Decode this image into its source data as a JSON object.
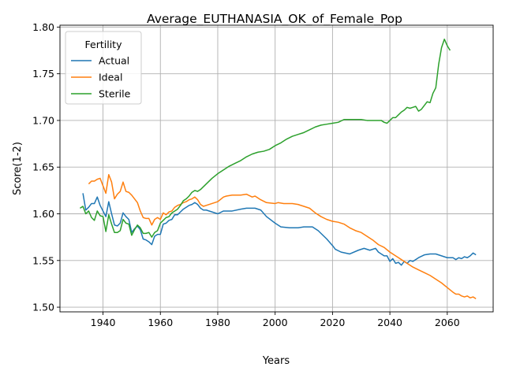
{
  "chart_data": {
    "type": "line",
    "title": "Average_EUTHANASIA_OK_of_Female_Pop",
    "xlabel": "Years",
    "ylabel": "Score(1-2)",
    "xlim": [
      1925,
      2076
    ],
    "ylim": [
      1.495,
      1.802
    ],
    "xticks": [
      1940,
      1960,
      1980,
      2000,
      2020,
      2040,
      2060
    ],
    "yticks": [
      1.5,
      1.55,
      1.6,
      1.65,
      1.7,
      1.75,
      1.8
    ],
    "grid": true,
    "legend": {
      "title": "Fertility",
      "placement": "top-left"
    },
    "series": [
      {
        "name": "Actual",
        "color": "#1f77b4",
        "points": [
          [
            1933,
            1.622
          ],
          [
            1934,
            1.604
          ],
          [
            1935,
            1.607
          ],
          [
            1936,
            1.611
          ],
          [
            1937,
            1.611
          ],
          [
            1938,
            1.618
          ],
          [
            1939,
            1.609
          ],
          [
            1940,
            1.603
          ],
          [
            1941,
            1.597
          ],
          [
            1942,
            1.613
          ],
          [
            1943,
            1.6
          ],
          [
            1944,
            1.588
          ],
          [
            1945,
            1.587
          ],
          [
            1946,
            1.59
          ],
          [
            1947,
            1.601
          ],
          [
            1948,
            1.597
          ],
          [
            1949,
            1.594
          ],
          [
            1950,
            1.58
          ],
          [
            1951,
            1.584
          ],
          [
            1952,
            1.587
          ],
          [
            1953,
            1.583
          ],
          [
            1954,
            1.573
          ],
          [
            1955,
            1.572
          ],
          [
            1956,
            1.57
          ],
          [
            1957,
            1.567
          ],
          [
            1958,
            1.576
          ],
          [
            1959,
            1.578
          ],
          [
            1960,
            1.578
          ],
          [
            1961,
            1.589
          ],
          [
            1962,
            1.59
          ],
          [
            1963,
            1.593
          ],
          [
            1964,
            1.594
          ],
          [
            1965,
            1.599
          ],
          [
            1966,
            1.599
          ],
          [
            1967,
            1.602
          ],
          [
            1968,
            1.605
          ],
          [
            1969,
            1.607
          ],
          [
            1970,
            1.609
          ],
          [
            1971,
            1.61
          ],
          [
            1972,
            1.612
          ],
          [
            1973,
            1.61
          ],
          [
            1974,
            1.606
          ],
          [
            1975,
            1.604
          ],
          [
            1976,
            1.604
          ],
          [
            1978,
            1.602
          ],
          [
            1980,
            1.6
          ],
          [
            1982,
            1.603
          ],
          [
            1985,
            1.603
          ],
          [
            1988,
            1.605
          ],
          [
            1990,
            1.606
          ],
          [
            1993,
            1.606
          ],
          [
            1995,
            1.604
          ],
          [
            1997,
            1.597
          ],
          [
            2000,
            1.59
          ],
          [
            2002,
            1.586
          ],
          [
            2005,
            1.585
          ],
          [
            2008,
            1.585
          ],
          [
            2010,
            1.586
          ],
          [
            2013,
            1.586
          ],
          [
            2015,
            1.582
          ],
          [
            2018,
            1.573
          ],
          [
            2020,
            1.566
          ],
          [
            2021,
            1.562
          ],
          [
            2023,
            1.559
          ],
          [
            2026,
            1.557
          ],
          [
            2029,
            1.561
          ],
          [
            2031,
            1.563
          ],
          [
            2033,
            1.561
          ],
          [
            2035,
            1.563
          ],
          [
            2036,
            1.559
          ],
          [
            2037,
            1.557
          ],
          [
            2038,
            1.555
          ],
          [
            2039,
            1.555
          ],
          [
            2040,
            1.549
          ],
          [
            2041,
            1.552
          ],
          [
            2042,
            1.547
          ],
          [
            2043,
            1.548
          ],
          [
            2044,
            1.545
          ],
          [
            2045,
            1.549
          ],
          [
            2046,
            1.547
          ],
          [
            2047,
            1.55
          ],
          [
            2048,
            1.549
          ],
          [
            2049,
            1.551
          ],
          [
            2050,
            1.553
          ],
          [
            2052,
            1.556
          ],
          [
            2054,
            1.557
          ],
          [
            2056,
            1.557
          ],
          [
            2058,
            1.555
          ],
          [
            2060,
            1.553
          ],
          [
            2062,
            1.553
          ],
          [
            2063,
            1.551
          ],
          [
            2064,
            1.553
          ],
          [
            2065,
            1.552
          ],
          [
            2066,
            1.554
          ],
          [
            2067,
            1.553
          ],
          [
            2068,
            1.555
          ],
          [
            2069,
            1.558
          ],
          [
            2070,
            1.556
          ]
        ]
      },
      {
        "name": "Ideal",
        "color": "#ff7f0e",
        "points": [
          [
            1935,
            1.632
          ],
          [
            1936,
            1.635
          ],
          [
            1937,
            1.635
          ],
          [
            1938,
            1.637
          ],
          [
            1939,
            1.638
          ],
          [
            1940,
            1.63
          ],
          [
            1941,
            1.622
          ],
          [
            1942,
            1.642
          ],
          [
            1943,
            1.634
          ],
          [
            1944,
            1.616
          ],
          [
            1945,
            1.621
          ],
          [
            1946,
            1.624
          ],
          [
            1947,
            1.634
          ],
          [
            1948,
            1.624
          ],
          [
            1949,
            1.623
          ],
          [
            1950,
            1.62
          ],
          [
            1951,
            1.616
          ],
          [
            1952,
            1.612
          ],
          [
            1953,
            1.603
          ],
          [
            1954,
            1.596
          ],
          [
            1955,
            1.595
          ],
          [
            1956,
            1.595
          ],
          [
            1957,
            1.588
          ],
          [
            1958,
            1.594
          ],
          [
            1959,
            1.596
          ],
          [
            1960,
            1.594
          ],
          [
            1961,
            1.601
          ],
          [
            1962,
            1.599
          ],
          [
            1963,
            1.602
          ],
          [
            1964,
            1.603
          ],
          [
            1965,
            1.607
          ],
          [
            1966,
            1.609
          ],
          [
            1967,
            1.61
          ],
          [
            1968,
            1.612
          ],
          [
            1969,
            1.613
          ],
          [
            1970,
            1.615
          ],
          [
            1971,
            1.616
          ],
          [
            1972,
            1.618
          ],
          [
            1973,
            1.615
          ],
          [
            1974,
            1.61
          ],
          [
            1975,
            1.608
          ],
          [
            1976,
            1.609
          ],
          [
            1978,
            1.611
          ],
          [
            1980,
            1.613
          ],
          [
            1982,
            1.618
          ],
          [
            1983,
            1.619
          ],
          [
            1985,
            1.62
          ],
          [
            1988,
            1.62
          ],
          [
            1990,
            1.621
          ],
          [
            1992,
            1.618
          ],
          [
            1993,
            1.619
          ],
          [
            1995,
            1.615
          ],
          [
            1997,
            1.612
          ],
          [
            2000,
            1.611
          ],
          [
            2001,
            1.612
          ],
          [
            2003,
            1.611
          ],
          [
            2006,
            1.611
          ],
          [
            2008,
            1.61
          ],
          [
            2010,
            1.608
          ],
          [
            2012,
            1.606
          ],
          [
            2014,
            1.601
          ],
          [
            2016,
            1.597
          ],
          [
            2018,
            1.594
          ],
          [
            2020,
            1.592
          ],
          [
            2022,
            1.591
          ],
          [
            2024,
            1.589
          ],
          [
            2026,
            1.585
          ],
          [
            2028,
            1.582
          ],
          [
            2030,
            1.58
          ],
          [
            2032,
            1.576
          ],
          [
            2034,
            1.572
          ],
          [
            2036,
            1.567
          ],
          [
            2038,
            1.564
          ],
          [
            2040,
            1.559
          ],
          [
            2042,
            1.555
          ],
          [
            2044,
            1.551
          ],
          [
            2046,
            1.547
          ],
          [
            2048,
            1.543
          ],
          [
            2050,
            1.54
          ],
          [
            2052,
            1.537
          ],
          [
            2054,
            1.534
          ],
          [
            2056,
            1.53
          ],
          [
            2058,
            1.526
          ],
          [
            2060,
            1.521
          ],
          [
            2062,
            1.516
          ],
          [
            2063,
            1.514
          ],
          [
            2064,
            1.514
          ],
          [
            2065,
            1.512
          ],
          [
            2066,
            1.511
          ],
          [
            2067,
            1.512
          ],
          [
            2068,
            1.51
          ],
          [
            2069,
            1.511
          ],
          [
            2070,
            1.509
          ]
        ]
      },
      {
        "name": "Sterile",
        "color": "#2ca02c",
        "points": [
          [
            1932,
            1.606
          ],
          [
            1933,
            1.608
          ],
          [
            1934,
            1.6
          ],
          [
            1935,
            1.603
          ],
          [
            1936,
            1.596
          ],
          [
            1937,
            1.593
          ],
          [
            1938,
            1.603
          ],
          [
            1939,
            1.598
          ],
          [
            1940,
            1.597
          ],
          [
            1941,
            1.581
          ],
          [
            1942,
            1.599
          ],
          [
            1943,
            1.589
          ],
          [
            1944,
            1.58
          ],
          [
            1945,
            1.58
          ],
          [
            1946,
            1.582
          ],
          [
            1947,
            1.594
          ],
          [
            1948,
            1.59
          ],
          [
            1949,
            1.589
          ],
          [
            1950,
            1.577
          ],
          [
            1951,
            1.583
          ],
          [
            1952,
            1.588
          ],
          [
            1953,
            1.585
          ],
          [
            1954,
            1.579
          ],
          [
            1955,
            1.579
          ],
          [
            1956,
            1.58
          ],
          [
            1957,
            1.575
          ],
          [
            1958,
            1.58
          ],
          [
            1959,
            1.582
          ],
          [
            1960,
            1.59
          ],
          [
            1961,
            1.593
          ],
          [
            1962,
            1.596
          ],
          [
            1963,
            1.597
          ],
          [
            1964,
            1.601
          ],
          [
            1965,
            1.603
          ],
          [
            1966,
            1.605
          ],
          [
            1967,
            1.609
          ],
          [
            1968,
            1.614
          ],
          [
            1969,
            1.616
          ],
          [
            1970,
            1.619
          ],
          [
            1971,
            1.623
          ],
          [
            1972,
            1.625
          ],
          [
            1973,
            1.624
          ],
          [
            1974,
            1.626
          ],
          [
            1976,
            1.632
          ],
          [
            1978,
            1.638
          ],
          [
            1980,
            1.643
          ],
          [
            1982,
            1.647
          ],
          [
            1984,
            1.651
          ],
          [
            1986,
            1.654
          ],
          [
            1988,
            1.657
          ],
          [
            1990,
            1.661
          ],
          [
            1992,
            1.664
          ],
          [
            1994,
            1.666
          ],
          [
            1996,
            1.667
          ],
          [
            1998,
            1.669
          ],
          [
            2000,
            1.673
          ],
          [
            2002,
            1.676
          ],
          [
            2004,
            1.68
          ],
          [
            2006,
            1.683
          ],
          [
            2008,
            1.685
          ],
          [
            2010,
            1.687
          ],
          [
            2012,
            1.69
          ],
          [
            2014,
            1.693
          ],
          [
            2016,
            1.695
          ],
          [
            2018,
            1.696
          ],
          [
            2020,
            1.697
          ],
          [
            2022,
            1.698
          ],
          [
            2024,
            1.701
          ],
          [
            2026,
            1.701
          ],
          [
            2028,
            1.701
          ],
          [
            2030,
            1.701
          ],
          [
            2032,
            1.7
          ],
          [
            2034,
            1.7
          ],
          [
            2036,
            1.7
          ],
          [
            2037,
            1.7
          ],
          [
            2038,
            1.698
          ],
          [
            2039,
            1.697
          ],
          [
            2040,
            1.7
          ],
          [
            2041,
            1.703
          ],
          [
            2042,
            1.703
          ],
          [
            2043,
            1.706
          ],
          [
            2044,
            1.709
          ],
          [
            2045,
            1.711
          ],
          [
            2046,
            1.714
          ],
          [
            2047,
            1.713
          ],
          [
            2048,
            1.714
          ],
          [
            2049,
            1.715
          ],
          [
            2050,
            1.71
          ],
          [
            2051,
            1.712
          ],
          [
            2052,
            1.716
          ],
          [
            2053,
            1.72
          ],
          [
            2054,
            1.719
          ],
          [
            2055,
            1.729
          ],
          [
            2056,
            1.735
          ],
          [
            2057,
            1.76
          ],
          [
            2058,
            1.778
          ],
          [
            2059,
            1.787
          ],
          [
            2060,
            1.78
          ],
          [
            2061,
            1.775
          ]
        ]
      }
    ]
  }
}
